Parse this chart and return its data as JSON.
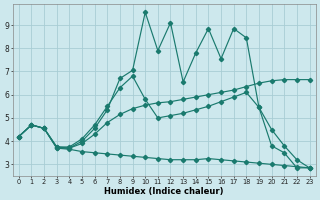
{
  "xlabel": "Humidex (Indice chaleur)",
  "ylabel": "",
  "bg_color": "#cde8ed",
  "grid_color": "#a8cdd4",
  "line_color": "#1a7a6e",
  "xlim": [
    -0.5,
    23.5
  ],
  "ylim": [
    2.5,
    9.9
  ],
  "xticks": [
    0,
    1,
    2,
    3,
    4,
    5,
    6,
    7,
    8,
    9,
    10,
    11,
    12,
    13,
    14,
    15,
    16,
    17,
    18,
    19,
    20,
    21,
    22,
    23
  ],
  "yticks": [
    3,
    4,
    5,
    6,
    7,
    8,
    9
  ],
  "line1_x": [
    0,
    1,
    2,
    3,
    4,
    5,
    6,
    7,
    8,
    9,
    10,
    11,
    12,
    13,
    14,
    15,
    16,
    17,
    18,
    19,
    20,
    21,
    22,
    23
  ],
  "line1_y": [
    4.2,
    4.7,
    4.55,
    3.7,
    3.7,
    4.0,
    4.55,
    5.35,
    6.7,
    7.05,
    9.55,
    7.9,
    9.1,
    6.55,
    7.8,
    8.85,
    7.55,
    8.85,
    8.45,
    5.45,
    3.8,
    3.5,
    2.85,
    2.85
  ],
  "line2_x": [
    0,
    1,
    2,
    3,
    4,
    5,
    6,
    7,
    8,
    9,
    10,
    11,
    12,
    13,
    14,
    15,
    16,
    17,
    18,
    19,
    20,
    21,
    22,
    23
  ],
  "line2_y": [
    4.2,
    4.7,
    4.55,
    3.75,
    3.75,
    4.1,
    4.7,
    5.5,
    6.3,
    6.8,
    5.8,
    5.0,
    5.1,
    5.2,
    5.35,
    5.5,
    5.7,
    5.9,
    6.1,
    5.45,
    4.5,
    3.8,
    3.2,
    2.85
  ],
  "line3_x": [
    0,
    1,
    2,
    3,
    4,
    5,
    6,
    7,
    8,
    9,
    10,
    11,
    12,
    13,
    14,
    15,
    16,
    17,
    18,
    19,
    20,
    21,
    22,
    23
  ],
  "line3_y": [
    4.2,
    4.7,
    4.55,
    3.75,
    3.7,
    3.9,
    4.3,
    4.8,
    5.15,
    5.4,
    5.55,
    5.65,
    5.7,
    5.8,
    5.9,
    6.0,
    6.1,
    6.2,
    6.35,
    6.5,
    6.6,
    6.65,
    6.65,
    6.65
  ],
  "line4_x": [
    0,
    1,
    2,
    3,
    4,
    5,
    6,
    7,
    8,
    9,
    10,
    11,
    12,
    13,
    14,
    15,
    16,
    17,
    18,
    19,
    20,
    21,
    22,
    23
  ],
  "line4_y": [
    4.2,
    4.7,
    4.55,
    3.7,
    3.65,
    3.55,
    3.5,
    3.45,
    3.4,
    3.35,
    3.3,
    3.25,
    3.2,
    3.2,
    3.2,
    3.25,
    3.2,
    3.15,
    3.1,
    3.05,
    3.0,
    2.95,
    2.9,
    2.85
  ]
}
